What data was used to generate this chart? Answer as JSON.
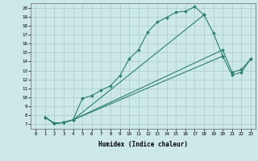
{
  "xlabel": "Humidex (Indice chaleur)",
  "bg_color": "#cce8e8",
  "grid_color": "#aacccc",
  "line_color": "#2e7f70",
  "xlim": [
    -0.5,
    23.5
  ],
  "ylim": [
    6.5,
    20.5
  ],
  "xticks": [
    0,
    1,
    2,
    3,
    4,
    5,
    6,
    7,
    8,
    9,
    10,
    11,
    12,
    13,
    14,
    15,
    16,
    17,
    18,
    19,
    20,
    21,
    22,
    23
  ],
  "yticks": [
    7,
    8,
    9,
    10,
    11,
    12,
    13,
    14,
    15,
    16,
    17,
    18,
    19,
    20
  ],
  "line1_x": [
    1,
    2,
    3,
    4,
    5,
    6,
    7,
    8,
    9,
    10,
    11,
    12,
    13,
    14,
    15,
    16,
    17,
    18
  ],
  "line1_y": [
    7.8,
    7.1,
    7.2,
    7.5,
    9.9,
    10.2,
    10.8,
    11.3,
    12.4,
    14.3,
    15.3,
    17.3,
    18.4,
    18.9,
    19.5,
    19.6,
    20.1,
    19.2
  ],
  "line2_x": [
    1,
    2,
    3,
    4,
    18,
    19,
    20
  ],
  "line2_y": [
    7.8,
    7.1,
    7.2,
    7.5,
    19.2,
    17.2,
    14.6
  ],
  "line3_x": [
    1,
    2,
    3,
    4,
    20,
    21,
    22,
    23
  ],
  "line3_y": [
    7.8,
    7.1,
    7.2,
    7.5,
    15.3,
    12.8,
    13.1,
    14.3
  ],
  "line4_x": [
    1,
    2,
    3,
    4,
    20,
    21,
    22,
    23
  ],
  "line4_y": [
    7.8,
    7.1,
    7.2,
    7.5,
    14.6,
    12.5,
    12.8,
    14.3
  ]
}
